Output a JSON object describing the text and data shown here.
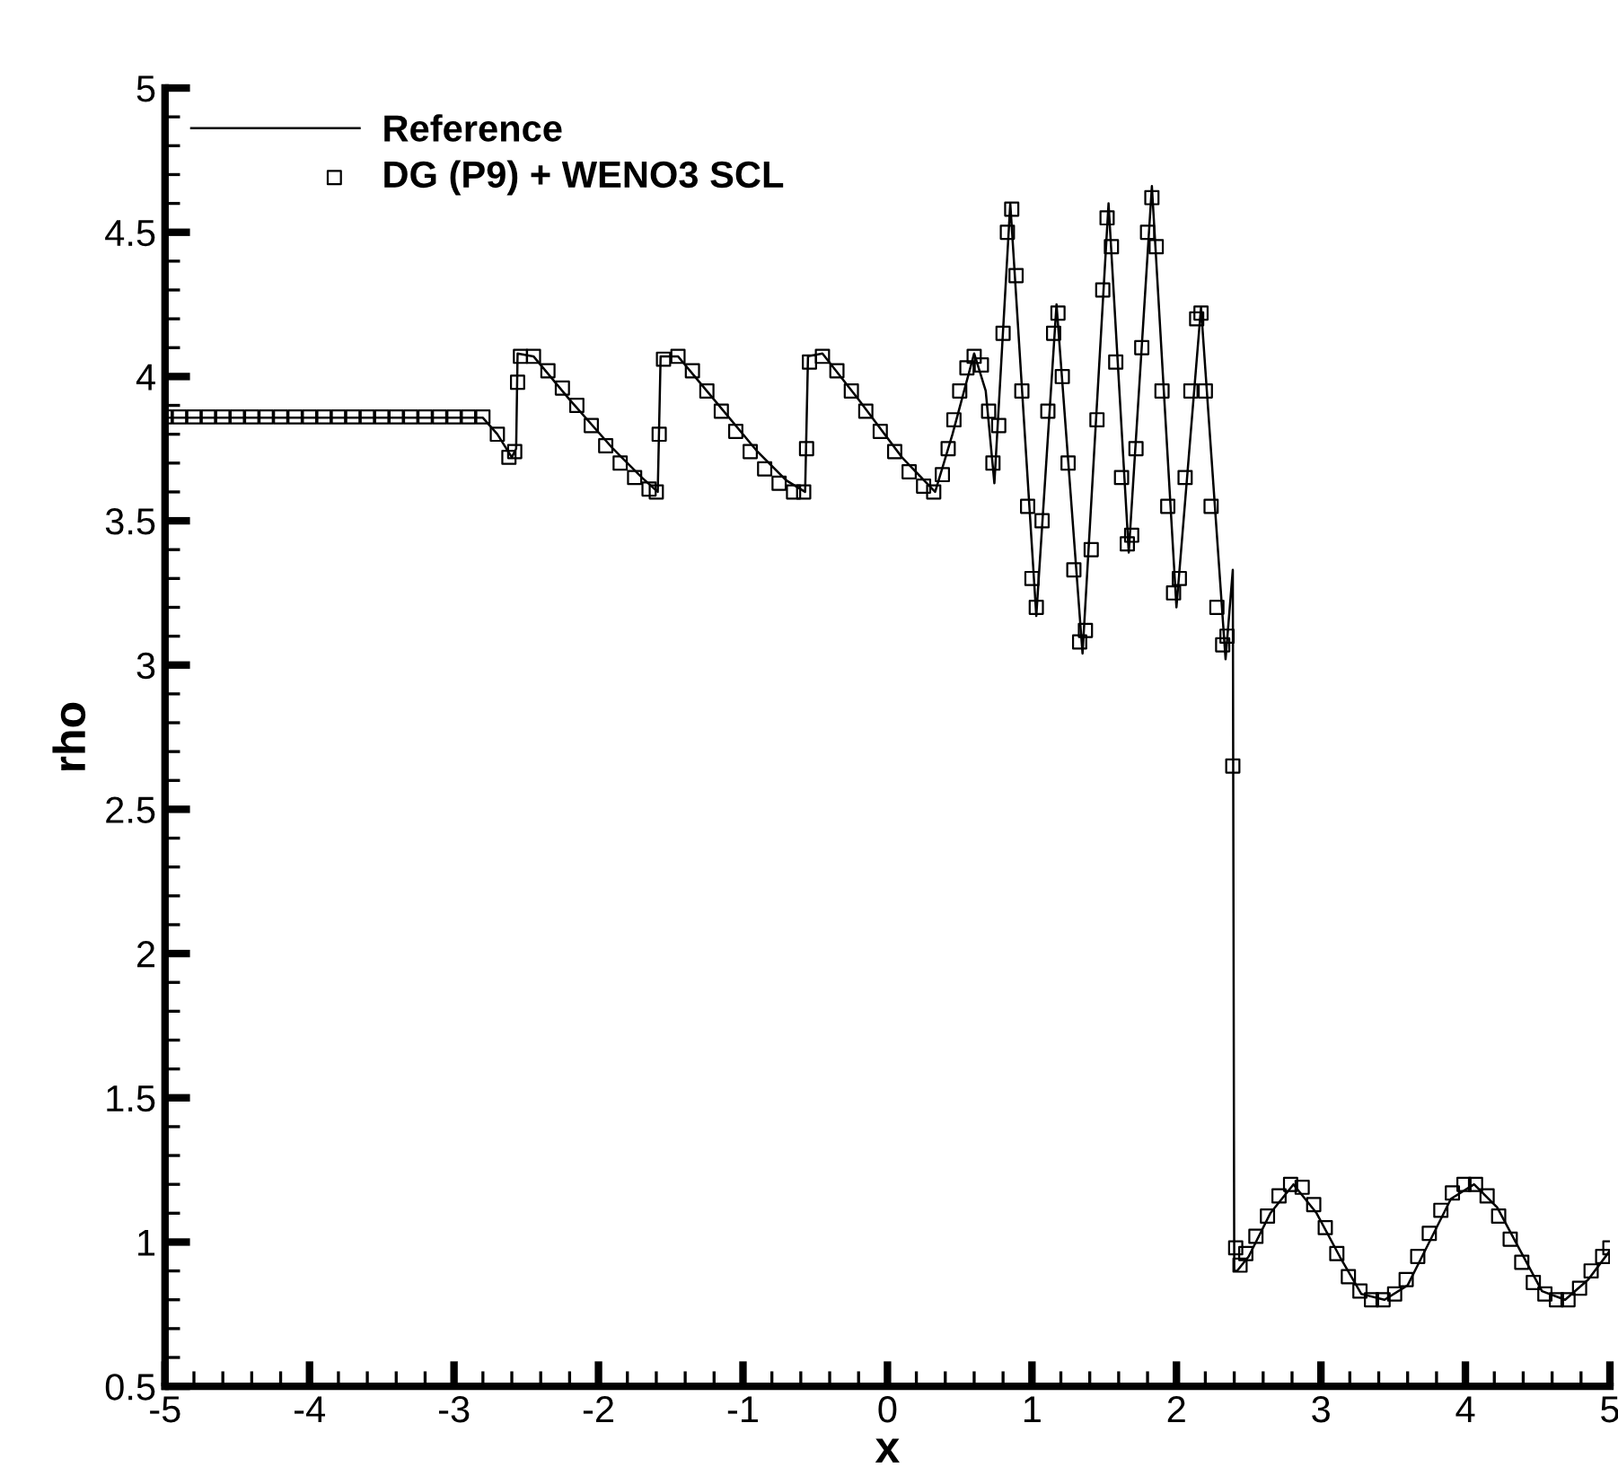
{
  "chart_data": {
    "type": "line",
    "xlabel": "x",
    "ylabel": "rho",
    "xlim": [
      -5,
      5
    ],
    "ylim": [
      0.5,
      5
    ],
    "xticks": [
      -5,
      -4,
      -3,
      -2,
      -1,
      0,
      1,
      2,
      3,
      4,
      5
    ],
    "yticks": [
      0.5,
      1,
      1.5,
      2,
      2.5,
      3,
      3.5,
      4,
      4.5,
      5
    ],
    "grid": false,
    "legend": "top left",
    "series": [
      {
        "name": "Reference",
        "color": "#000000",
        "marker": "none",
        "line_style": "solid",
        "x": [
          -5,
          -2.8,
          -2.7,
          -2.6,
          -2.57,
          -2.56,
          -2.45,
          -2.2,
          -1.9,
          -1.7,
          -1.59,
          -1.57,
          -1.45,
          -1.2,
          -0.9,
          -0.7,
          -0.57,
          -0.55,
          -0.45,
          -0.2,
          0.1,
          0.33,
          0.45,
          0.6,
          0.68,
          0.74,
          0.85,
          1.03,
          1.17,
          1.35,
          1.53,
          1.67,
          1.83,
          2.0,
          2.17,
          2.34,
          2.39,
          2.4,
          2.42,
          2.5,
          2.65,
          2.81,
          2.97,
          3.13,
          3.28,
          3.44,
          3.6,
          3.75,
          3.9,
          4.06,
          4.22,
          4.38,
          4.53,
          4.69,
          4.85,
          5.0
        ],
        "values": [
          3.857,
          3.857,
          3.8,
          3.72,
          3.75,
          4.08,
          4.07,
          3.92,
          3.75,
          3.65,
          3.6,
          4.07,
          4.07,
          3.92,
          3.74,
          3.64,
          3.6,
          4.07,
          4.08,
          3.92,
          3.72,
          3.6,
          3.8,
          4.08,
          3.95,
          3.63,
          4.6,
          3.17,
          4.25,
          3.04,
          4.6,
          3.39,
          4.66,
          3.2,
          4.24,
          3.02,
          3.33,
          0.9,
          0.9,
          0.95,
          1.1,
          1.2,
          1.1,
          0.95,
          0.82,
          0.8,
          0.85,
          1.0,
          1.15,
          1.2,
          1.12,
          0.97,
          0.83,
          0.8,
          0.87,
          0.97
        ]
      },
      {
        "name": "DG (P9) + WENO3 SCL",
        "type": "scatter",
        "color": "#000000",
        "marker": "square",
        "x": [
          -5.0,
          -4.9,
          -4.8,
          -4.7,
          -4.6,
          -4.5,
          -4.4,
          -4.3,
          -4.2,
          -4.1,
          -4.0,
          -3.9,
          -3.8,
          -3.7,
          -3.6,
          -3.5,
          -3.4,
          -3.3,
          -3.2,
          -3.1,
          -3.0,
          -2.9,
          -2.8,
          -2.7,
          -2.62,
          -2.58,
          -2.56,
          -2.54,
          -2.45,
          -2.35,
          -2.25,
          -2.15,
          -2.05,
          -1.95,
          -1.85,
          -1.75,
          -1.65,
          -1.6,
          -1.58,
          -1.55,
          -1.45,
          -1.35,
          -1.25,
          -1.15,
          -1.05,
          -0.95,
          -0.85,
          -0.75,
          -0.65,
          -0.58,
          -0.56,
          -0.54,
          -0.45,
          -0.35,
          -0.25,
          -0.15,
          -0.05,
          0.05,
          0.15,
          0.25,
          0.32,
          0.38,
          0.42,
          0.46,
          0.5,
          0.55,
          0.6,
          0.65,
          0.7,
          0.73,
          0.77,
          0.8,
          0.83,
          0.86,
          0.89,
          0.93,
          0.97,
          1.0,
          1.03,
          1.07,
          1.11,
          1.15,
          1.18,
          1.21,
          1.25,
          1.29,
          1.33,
          1.37,
          1.41,
          1.45,
          1.49,
          1.52,
          1.55,
          1.58,
          1.62,
          1.66,
          1.69,
          1.72,
          1.76,
          1.8,
          1.83,
          1.86,
          1.9,
          1.94,
          1.98,
          2.02,
          2.06,
          2.1,
          2.14,
          2.17,
          2.2,
          2.24,
          2.28,
          2.32,
          2.35,
          2.39,
          2.41,
          2.44,
          2.48,
          2.55,
          2.63,
          2.71,
          2.79,
          2.87,
          2.95,
          3.03,
          3.11,
          3.19,
          3.27,
          3.35,
          3.43,
          3.51,
          3.59,
          3.67,
          3.75,
          3.83,
          3.91,
          3.99,
          4.07,
          4.15,
          4.23,
          4.31,
          4.39,
          4.47,
          4.55,
          4.63,
          4.71,
          4.79,
          4.87,
          4.95,
          5.0
        ],
        "values": [
          3.86,
          3.86,
          3.86,
          3.86,
          3.86,
          3.86,
          3.86,
          3.86,
          3.86,
          3.86,
          3.86,
          3.86,
          3.86,
          3.86,
          3.86,
          3.86,
          3.86,
          3.86,
          3.86,
          3.86,
          3.86,
          3.86,
          3.86,
          3.8,
          3.72,
          3.74,
          3.98,
          4.07,
          4.07,
          4.02,
          3.96,
          3.9,
          3.83,
          3.76,
          3.7,
          3.65,
          3.61,
          3.6,
          3.8,
          4.06,
          4.07,
          4.02,
          3.95,
          3.88,
          3.81,
          3.74,
          3.68,
          3.63,
          3.6,
          3.6,
          3.75,
          4.05,
          4.07,
          4.02,
          3.95,
          3.88,
          3.81,
          3.74,
          3.67,
          3.62,
          3.6,
          3.66,
          3.75,
          3.85,
          3.95,
          4.03,
          4.07,
          4.04,
          3.88,
          3.7,
          3.83,
          4.15,
          4.5,
          4.58,
          4.35,
          3.95,
          3.55,
          3.3,
          3.2,
          3.5,
          3.88,
          4.15,
          4.22,
          4.0,
          3.7,
          3.33,
          3.08,
          3.12,
          3.4,
          3.85,
          4.3,
          4.55,
          4.45,
          4.05,
          3.65,
          3.42,
          3.45,
          3.75,
          4.1,
          4.5,
          4.62,
          4.45,
          3.95,
          3.55,
          3.25,
          3.3,
          3.65,
          3.95,
          4.2,
          4.22,
          3.95,
          3.55,
          3.2,
          3.07,
          3.1,
          2.65,
          0.98,
          0.92,
          0.96,
          1.02,
          1.09,
          1.16,
          1.2,
          1.19,
          1.13,
          1.05,
          0.96,
          0.88,
          0.83,
          0.8,
          0.8,
          0.82,
          0.87,
          0.95,
          1.03,
          1.11,
          1.17,
          1.2,
          1.2,
          1.16,
          1.09,
          1.01,
          0.93,
          0.86,
          0.82,
          0.8,
          0.8,
          0.84,
          0.9,
          0.95,
          0.98
        ]
      }
    ]
  }
}
